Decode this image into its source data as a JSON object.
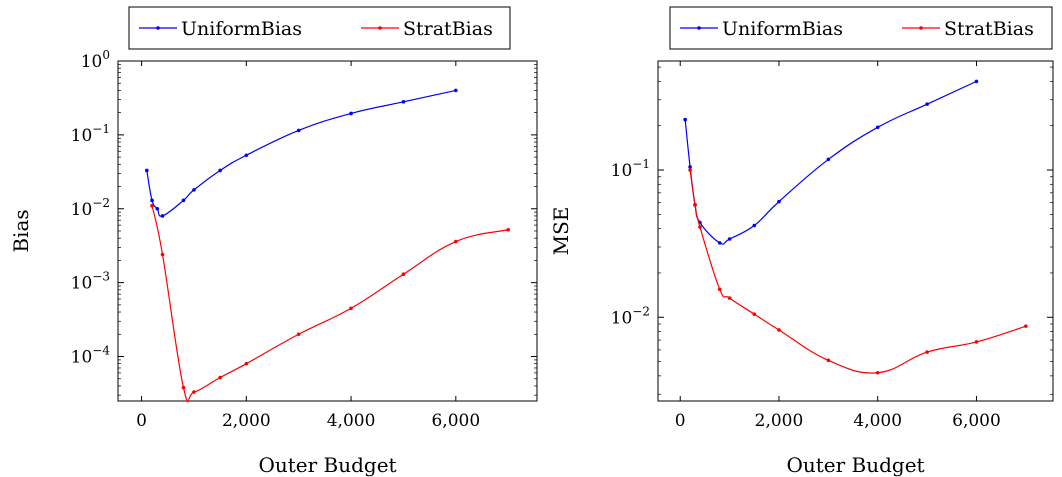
{
  "chart_data": [
    {
      "type": "line",
      "xlabel": "Outer Budget",
      "ylabel": "Bias",
      "yscale": "log",
      "xlim": [
        -450,
        7550
      ],
      "ylim": [
        2.5e-05,
        1.0
      ],
      "xticks": [
        0,
        2000,
        4000,
        6000
      ],
      "xtick_labels": [
        "0",
        "2,000",
        "4,000",
        "6,000"
      ],
      "yticks": [
        0.0001,
        0.001,
        0.01,
        0.1,
        1
      ],
      "ytick_labels": [
        {
          "base": "10",
          "exp": "−4"
        },
        {
          "base": "10",
          "exp": "−3"
        },
        {
          "base": "10",
          "exp": "−2"
        },
        {
          "base": "10",
          "exp": "−1"
        },
        {
          "base": "10",
          "exp": "0"
        }
      ],
      "grid": false,
      "legend": "top",
      "series": [
        {
          "name": "UniformBias",
          "color": "#0000ff",
          "x": [
            100,
            200,
            300,
            400,
            800,
            1000,
            1500,
            2000,
            3000,
            4000,
            5000,
            6000
          ],
          "y": [
            0.033,
            0.013,
            0.01,
            0.008,
            0.013,
            0.018,
            0.033,
            0.053,
            0.115,
            0.195,
            0.28,
            0.4
          ]
        },
        {
          "name": "StratBias",
          "color": "#ff0000",
          "x": [
            200,
            400,
            800,
            1000,
            1500,
            2000,
            3000,
            4000,
            5000,
            6000,
            7000
          ],
          "y": [
            0.011,
            0.0024,
            3.8e-05,
            3.3e-05,
            5.2e-05,
            8e-05,
            0.0002,
            0.00045,
            0.0013,
            0.0036,
            0.0052
          ]
        }
      ]
    },
    {
      "type": "line",
      "xlabel": "Outer Budget",
      "ylabel": "MSE",
      "yscale": "log",
      "xlim": [
        -450,
        7550
      ],
      "ylim": [
        0.0027,
        0.55
      ],
      "xticks": [
        0,
        2000,
        4000,
        6000
      ],
      "xtick_labels": [
        "0",
        "2,000",
        "4,000",
        "6,000"
      ],
      "yticks": [
        0.01,
        0.1
      ],
      "ytick_labels": [
        {
          "base": "10",
          "exp": "−2"
        },
        {
          "base": "10",
          "exp": "−1"
        }
      ],
      "grid": false,
      "legend": "top",
      "series": [
        {
          "name": "UniformBias",
          "color": "#0000ff",
          "x": [
            100,
            200,
            300,
            400,
            800,
            1000,
            1500,
            2000,
            3000,
            4000,
            5000,
            6000
          ],
          "y": [
            0.22,
            0.105,
            0.058,
            0.044,
            0.032,
            0.034,
            0.042,
            0.061,
            0.118,
            0.195,
            0.28,
            0.4
          ]
        },
        {
          "name": "StratBias",
          "color": "#ff0000",
          "x": [
            200,
            300,
            400,
            800,
            1000,
            1500,
            2000,
            3000,
            4000,
            5000,
            6000,
            7000
          ],
          "y": [
            0.1,
            0.058,
            0.041,
            0.0155,
            0.0135,
            0.0105,
            0.0082,
            0.0051,
            0.0042,
            0.0058,
            0.0068,
            0.0087
          ]
        }
      ]
    }
  ]
}
